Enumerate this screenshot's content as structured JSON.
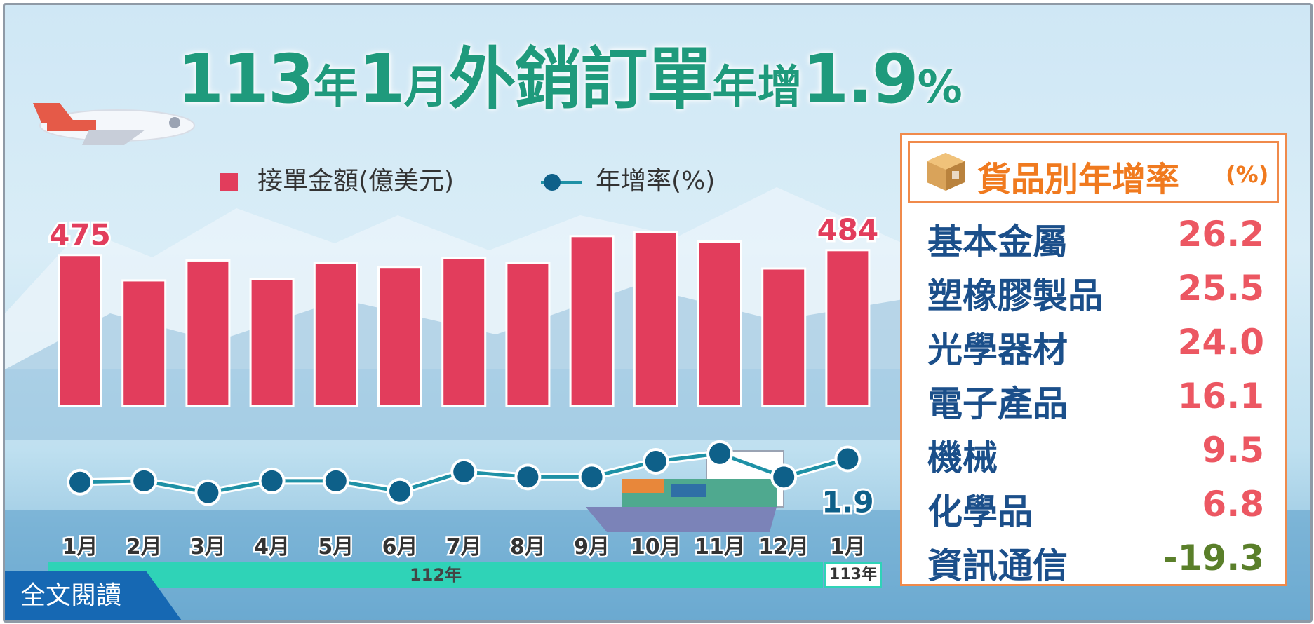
{
  "title": {
    "part1": "113",
    "part2": "年",
    "part3": "1",
    "part4": "月",
    "part5": "外銷訂單",
    "part6": "年增",
    "part7": "1.9",
    "part8": "%"
  },
  "legend": {
    "bars": "接單金額(億美元)",
    "line": "年增率(%)"
  },
  "chart_data": {
    "type": "bar",
    "categories": [
      "1月",
      "2月",
      "3月",
      "4月",
      "5月",
      "6月",
      "7月",
      "8月",
      "9月",
      "10月",
      "11月",
      "12月",
      "1月"
    ],
    "series": [
      {
        "name": "接單金額(億美元)",
        "type": "bar",
        "values": [
          475,
          428,
          465,
          430,
          460,
          453,
          470,
          461,
          510,
          518,
          500,
          450,
          484
        ],
        "data_labels": [
          "475",
          "",
          "",
          "",
          "",
          "",
          "",
          "",
          "",
          "",
          "",
          "",
          "484"
        ]
      },
      {
        "name": "年增率(%)",
        "type": "line",
        "values": [
          -16,
          -15,
          -24,
          -15,
          -15,
          -23,
          -8,
          -12,
          -12,
          0,
          6,
          -12,
          1.9
        ],
        "data_labels": [
          "",
          "",
          "",
          "",
          "",
          "",
          "",
          "",
          "",
          "",
          "",
          "",
          "1.9"
        ]
      }
    ],
    "x_groups": [
      {
        "label": "112年",
        "span": 12
      },
      {
        "label": "113年",
        "span": 1
      }
    ]
  },
  "panel": {
    "title": "貨品別年增率",
    "unit": "(%)",
    "icon": "box-icon",
    "items": [
      {
        "name": "基本金屬",
        "value": "26.2"
      },
      {
        "name": "塑橡膠製品",
        "value": "25.5"
      },
      {
        "name": "光學器材",
        "value": "24.0"
      },
      {
        "name": "電子產品",
        "value": "16.1"
      },
      {
        "name": "機械",
        "value": "9.5"
      },
      {
        "name": "化學品",
        "value": "6.8"
      },
      {
        "name": "資訊通信",
        "value": "-19.3"
      }
    ]
  },
  "read_all": "全文閱讀",
  "colors": {
    "bar": "#e23d5c",
    "line": "#1e91a6",
    "marker": "#0e6089",
    "title": "#1f9a7c",
    "accent": "#f08a4b",
    "positive": "#ec5762",
    "negative": "#5a7f2a"
  }
}
